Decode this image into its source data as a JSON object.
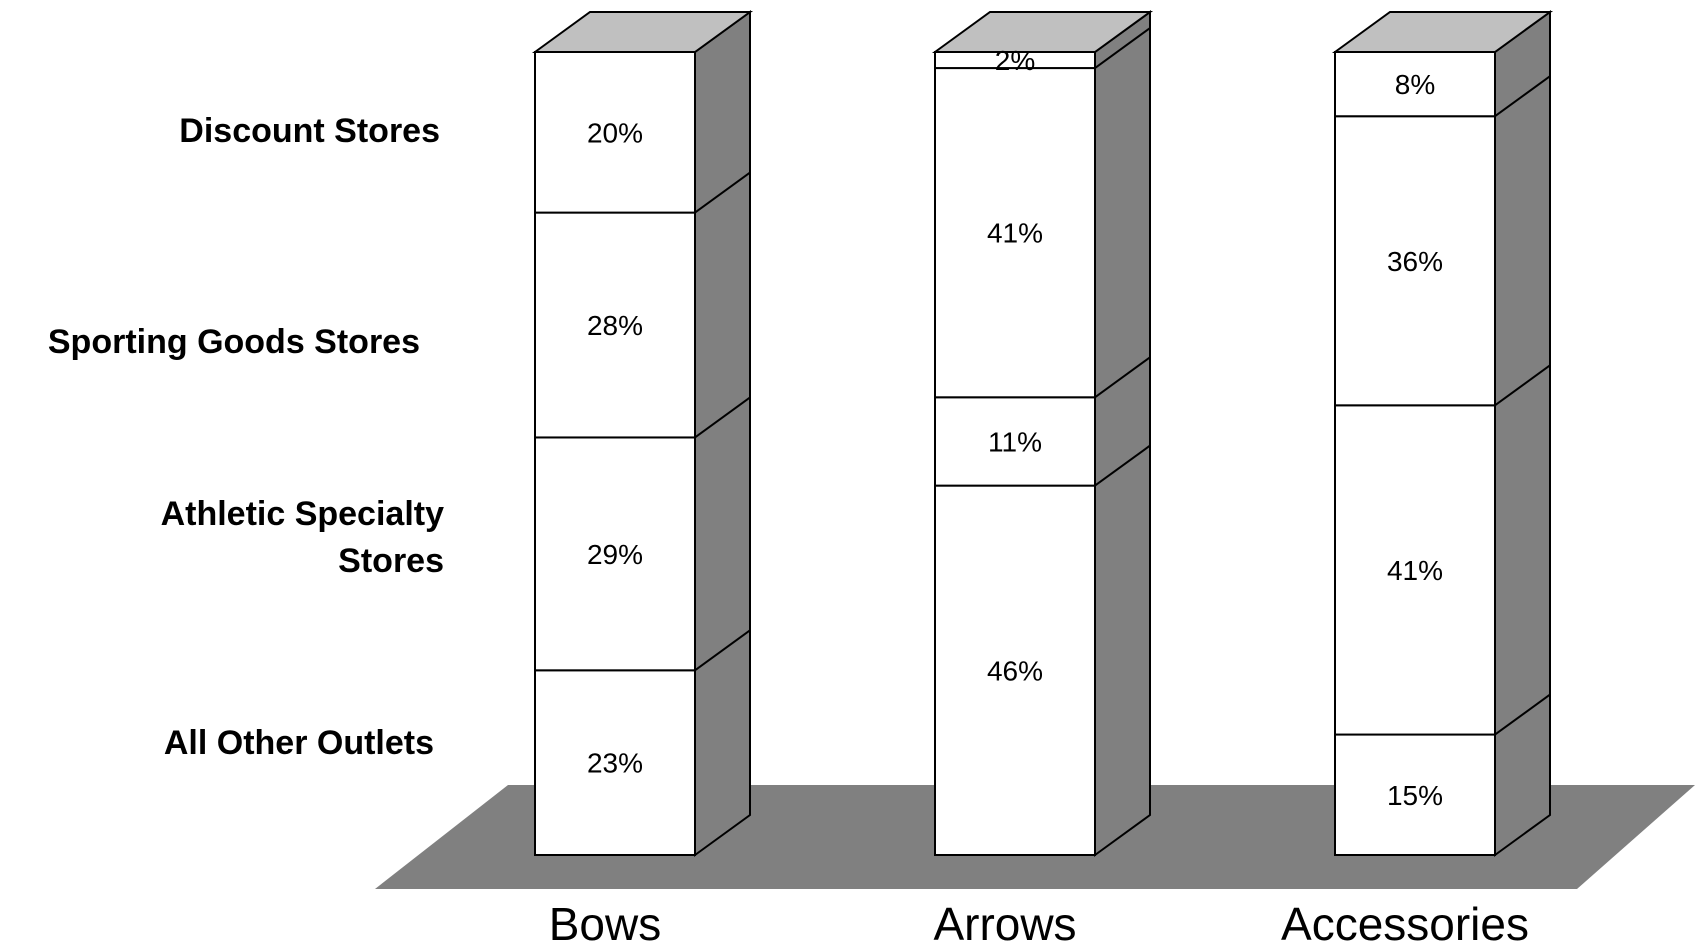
{
  "chart_data": {
    "type": "bar",
    "stacked": true,
    "three_d": true,
    "percent_scale": true,
    "categories": [
      "Bows",
      "Arrows",
      "Accessories"
    ],
    "series": [
      {
        "name": "All Other Outlets",
        "values": [
          23,
          46,
          15
        ],
        "labels": [
          "23%",
          "46%",
          "15%"
        ]
      },
      {
        "name": "Athletic Specialty Stores",
        "values": [
          29,
          11,
          41
        ],
        "labels": [
          "29%",
          "11%",
          "41%"
        ]
      },
      {
        "name": "Sporting Goods Stores",
        "values": [
          28,
          41,
          36
        ],
        "labels": [
          "28%",
          "41%",
          "36%"
        ]
      },
      {
        "name": "Discount Stores",
        "values": [
          20,
          2,
          8
        ],
        "labels": [
          "20%",
          "2%",
          "8%"
        ]
      }
    ],
    "legend": {
      "placement": "left",
      "entries": [
        {
          "lines": [
            "Discount Stores"
          ]
        },
        {
          "lines": [
            "Sporting Goods Stores"
          ]
        },
        {
          "lines": [
            "Athletic Specialty",
            "Stores"
          ]
        },
        {
          "lines": [
            "All Other Outlets"
          ]
        }
      ]
    },
    "colors": {
      "face": "#ffffff",
      "side": "#808080",
      "top": "#c0c0c0",
      "floor": "#808080",
      "stroke": "#000000"
    }
  }
}
